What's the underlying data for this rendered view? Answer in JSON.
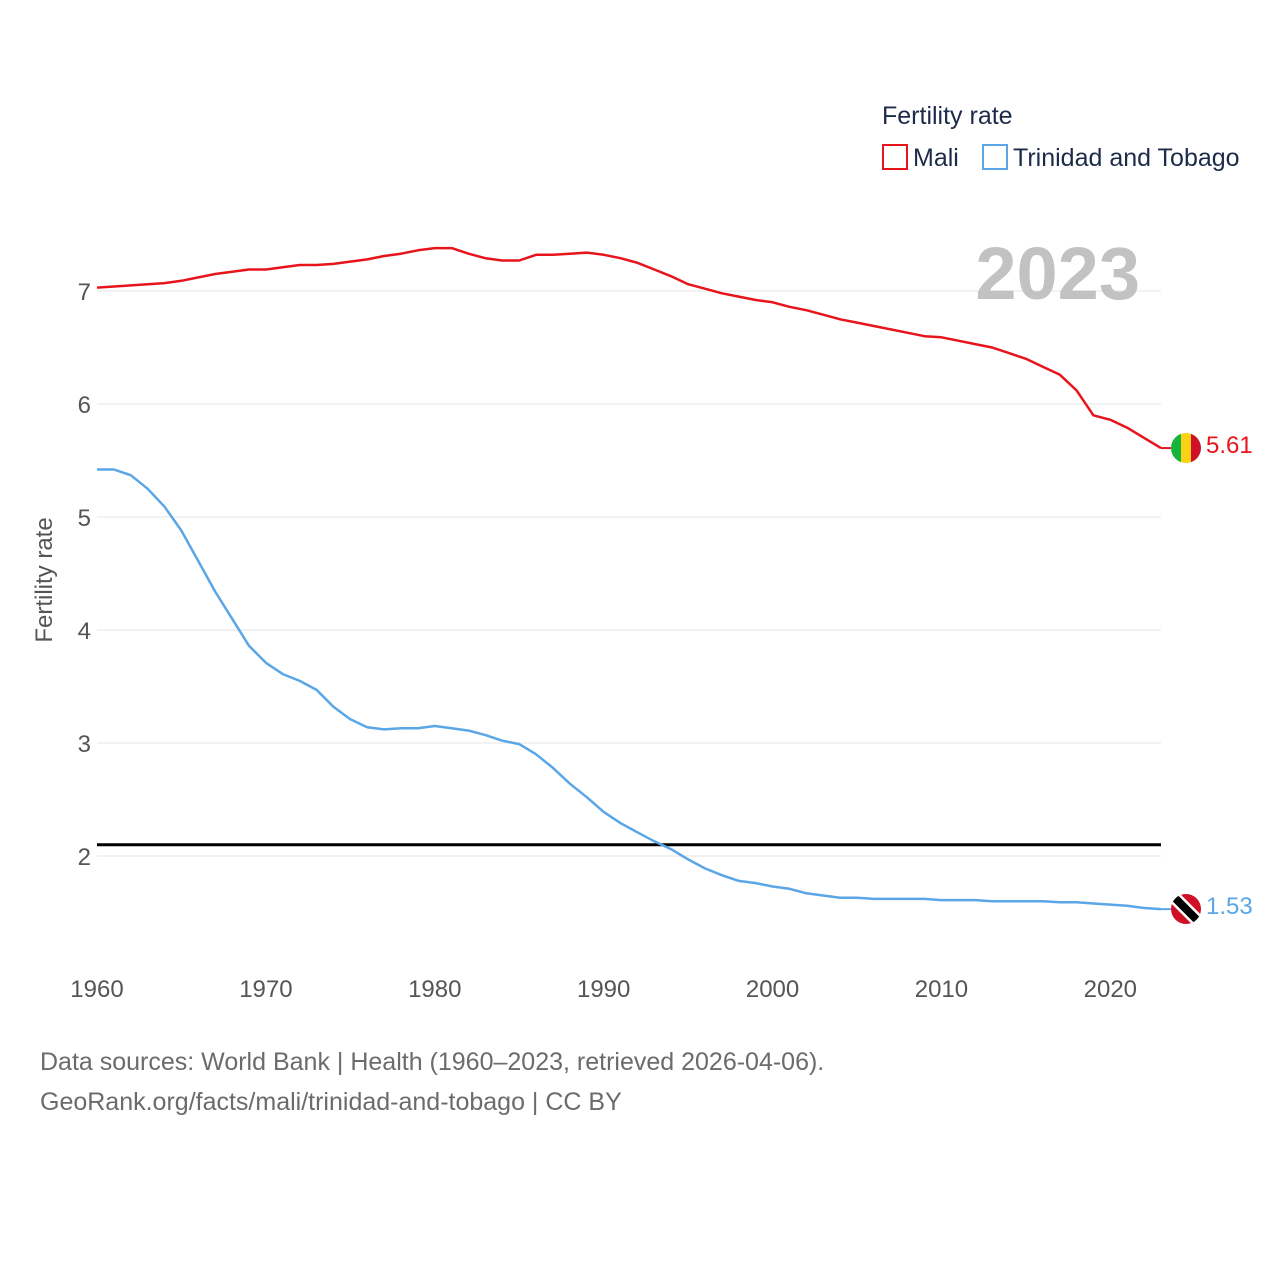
{
  "chart_data": {
    "type": "line",
    "title": "",
    "legend_title": "Fertility rate",
    "current_year_label": "2023",
    "ylabel": "Fertility rate",
    "xlabel": "",
    "xlim": [
      1960,
      2023
    ],
    "ylim": [
      1.1,
      7.6
    ],
    "x_ticks": [
      1960,
      1970,
      1980,
      1990,
      2000,
      2010,
      2020
    ],
    "y_ticks": [
      2,
      3,
      4,
      5,
      6,
      7
    ],
    "reference_line": {
      "value": 2.1,
      "color": "#000000"
    },
    "series": [
      {
        "name": "Mali",
        "color": "#e8141c",
        "end_label": "5.61",
        "flag": "mali-flag",
        "x": [
          1960,
          1961,
          1962,
          1963,
          1964,
          1965,
          1966,
          1967,
          1968,
          1969,
          1970,
          1971,
          1972,
          1973,
          1974,
          1975,
          1976,
          1977,
          1978,
          1979,
          1980,
          1981,
          1982,
          1983,
          1984,
          1985,
          1986,
          1987,
          1988,
          1989,
          1990,
          1991,
          1992,
          1993,
          1994,
          1995,
          1996,
          1997,
          1998,
          1999,
          2000,
          2001,
          2002,
          2003,
          2004,
          2005,
          2006,
          2007,
          2008,
          2009,
          2010,
          2011,
          2012,
          2013,
          2014,
          2015,
          2016,
          2017,
          2018,
          2019,
          2020,
          2021,
          2022,
          2023
        ],
        "values": [
          7.03,
          7.04,
          7.05,
          7.06,
          7.07,
          7.09,
          7.12,
          7.15,
          7.17,
          7.19,
          7.19,
          7.21,
          7.23,
          7.23,
          7.24,
          7.26,
          7.28,
          7.31,
          7.33,
          7.36,
          7.38,
          7.38,
          7.33,
          7.29,
          7.27,
          7.27,
          7.32,
          7.32,
          7.33,
          7.34,
          7.32,
          7.29,
          7.25,
          7.19,
          7.13,
          7.06,
          7.02,
          6.98,
          6.95,
          6.92,
          6.9,
          6.86,
          6.83,
          6.79,
          6.75,
          6.72,
          6.69,
          6.66,
          6.63,
          6.6,
          6.59,
          6.56,
          6.53,
          6.5,
          6.45,
          6.4,
          6.33,
          6.26,
          6.12,
          5.9,
          5.86,
          5.79,
          5.7,
          5.61
        ]
      },
      {
        "name": "Trinidad and Tobago",
        "color": "#5aa6e6",
        "end_label": "1.53",
        "flag": "trinidad-flag",
        "x": [
          1960,
          1961,
          1962,
          1963,
          1964,
          1965,
          1966,
          1967,
          1968,
          1969,
          1970,
          1971,
          1972,
          1973,
          1974,
          1975,
          1976,
          1977,
          1978,
          1979,
          1980,
          1981,
          1982,
          1983,
          1984,
          1985,
          1986,
          1987,
          1988,
          1989,
          1990,
          1991,
          1992,
          1993,
          1994,
          1995,
          1996,
          1997,
          1998,
          1999,
          2000,
          2001,
          2002,
          2003,
          2004,
          2005,
          2006,
          2007,
          2008,
          2009,
          2010,
          2011,
          2012,
          2013,
          2014,
          2015,
          2016,
          2017,
          2018,
          2019,
          2020,
          2021,
          2022,
          2023
        ],
        "values": [
          5.42,
          5.42,
          5.37,
          5.25,
          5.09,
          4.88,
          4.61,
          4.34,
          4.1,
          3.86,
          3.71,
          3.61,
          3.55,
          3.47,
          3.32,
          3.21,
          3.14,
          3.12,
          3.13,
          3.13,
          3.15,
          3.13,
          3.11,
          3.07,
          3.02,
          2.99,
          2.9,
          2.78,
          2.64,
          2.52,
          2.39,
          2.29,
          2.21,
          2.13,
          2.06,
          1.97,
          1.89,
          1.83,
          1.78,
          1.76,
          1.73,
          1.71,
          1.67,
          1.65,
          1.63,
          1.63,
          1.62,
          1.62,
          1.62,
          1.62,
          1.61,
          1.61,
          1.61,
          1.6,
          1.6,
          1.6,
          1.6,
          1.59,
          1.59,
          1.58,
          1.57,
          1.56,
          1.54,
          1.53
        ]
      }
    ]
  },
  "footer": {
    "line1": "Data sources: World Bank | Health (1960–2023, retrieved 2026-04-06).",
    "line2": "GeoRank.org/facts/mali/trinidad-and-tobago | CC BY"
  }
}
